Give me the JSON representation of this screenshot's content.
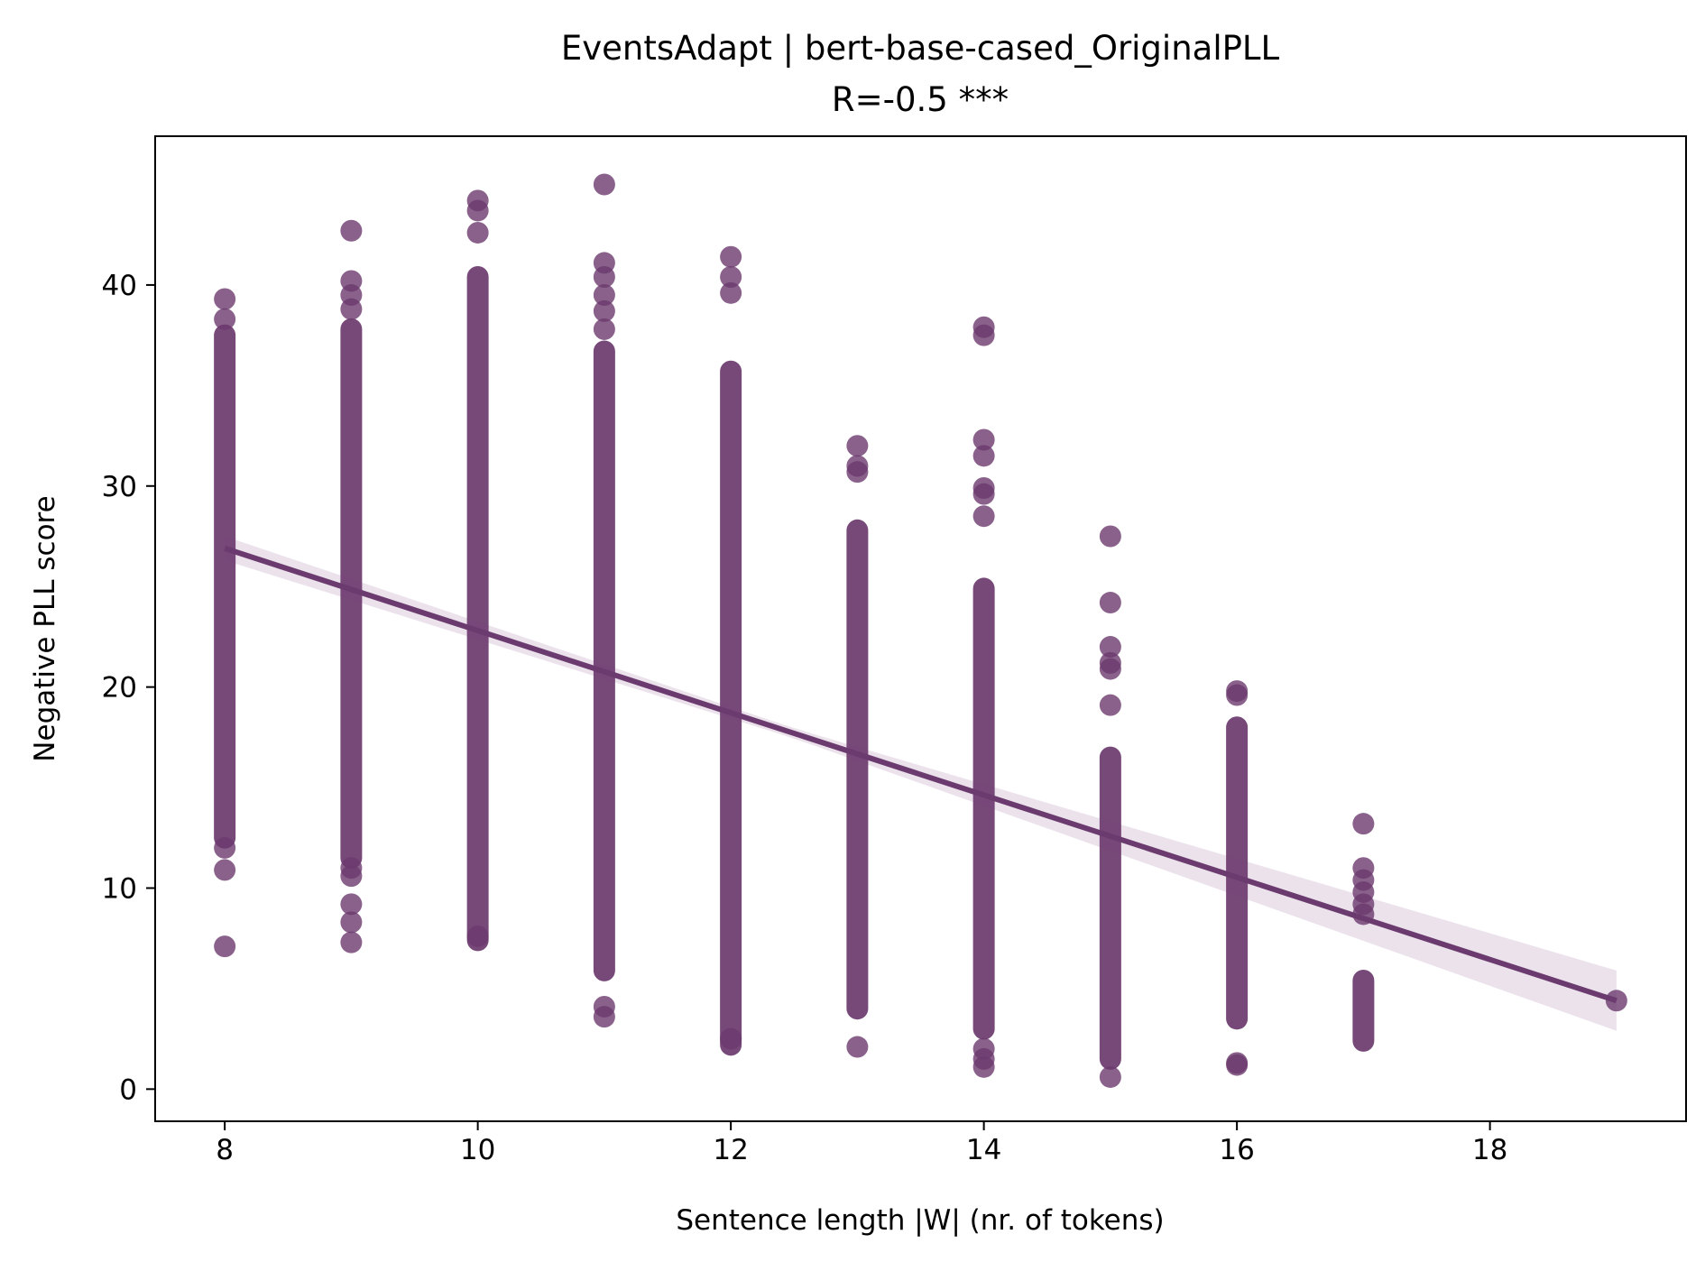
{
  "chart_data": {
    "type": "scatter",
    "title": "EventsAdapt | bert-base-cased_OriginalPLL",
    "subtitle": "R=-0.5 ***",
    "xlabel": "Sentence length |W| (nr. of tokens)",
    "ylabel": "Negative PLL score",
    "xlim": [
      7.45,
      19.55
    ],
    "ylim": [
      -1.6,
      47.4
    ],
    "xticks": [
      8,
      10,
      12,
      14,
      16,
      18
    ],
    "yticks": [
      0,
      10,
      20,
      30,
      40
    ],
    "grid": false,
    "color": "#6b3a6e",
    "band_color": "#e6dbe7",
    "regression": {
      "x_start": 8,
      "x_end": 19,
      "y_start": 26.9,
      "y_end": 4.4,
      "ci_half_width_start": 0.6,
      "ci_half_width_mid": 0.25,
      "ci_half_width_end": 1.5
    },
    "groups": [
      {
        "x": 8,
        "band": [
          12.5,
          37.5
        ],
        "outliers": [
          7.1,
          10.9,
          12.0,
          38.3,
          39.3
        ]
      },
      {
        "x": 9,
        "band": [
          11.5,
          37.8
        ],
        "outliers": [
          7.3,
          8.3,
          9.2,
          10.6,
          11.0,
          38.8,
          39.5,
          40.2,
          42.7
        ]
      },
      {
        "x": 10,
        "band": [
          7.4,
          40.4
        ],
        "outliers": [
          7.6,
          42.6,
          43.7,
          44.2
        ]
      },
      {
        "x": 11,
        "band": [
          5.9,
          36.7
        ],
        "outliers": [
          3.6,
          4.1,
          37.8,
          38.7,
          39.5,
          40.4,
          41.1,
          45.0
        ]
      },
      {
        "x": 12,
        "band": [
          2.2,
          35.7
        ],
        "outliers": [
          2.5,
          39.6,
          40.4,
          41.4
        ]
      },
      {
        "x": 13,
        "band": [
          4.0,
          27.8
        ],
        "outliers": [
          2.1,
          30.7,
          31.0,
          32.0
        ]
      },
      {
        "x": 14,
        "band": [
          3.0,
          24.9
        ],
        "outliers": [
          1.1,
          1.5,
          2.0,
          28.5,
          29.6,
          29.9,
          31.5,
          32.3,
          37.5,
          37.9
        ]
      },
      {
        "x": 15,
        "band": [
          1.5,
          16.5
        ],
        "outliers": [
          0.6,
          19.1,
          20.9,
          21.2,
          22.0,
          24.2,
          27.5
        ]
      },
      {
        "x": 16,
        "band": [
          3.5,
          18.0
        ],
        "outliers": [
          1.2,
          1.3,
          19.6,
          19.8
        ]
      },
      {
        "x": 17,
        "band": [
          2.4,
          5.4
        ],
        "outliers": [
          8.7,
          9.2,
          9.8,
          10.4,
          11.0,
          13.2
        ]
      },
      {
        "x": 19,
        "band": null,
        "outliers": [
          4.4
        ]
      }
    ]
  }
}
